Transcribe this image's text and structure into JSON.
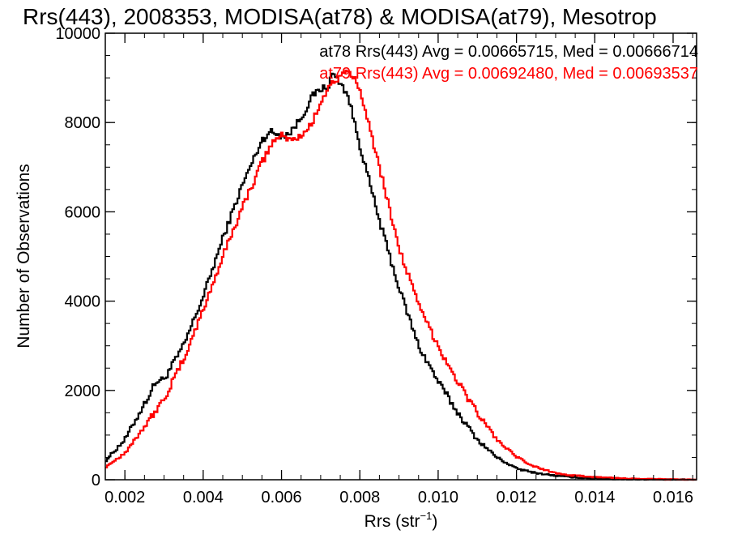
{
  "chart_data": {
    "type": "line",
    "title": "Rrs(443), 2008353, MODISA(at78) & MODISA(at79), Mesotrop",
    "xlabel": "Rrs (str",
    "xlabel_sup": "−1",
    "xlabel_close": ")",
    "ylabel": "Number of Observations",
    "xlim": [
      0.0015,
      0.0166
    ],
    "ylim": [
      0,
      10000
    ],
    "xticks": [
      0.002,
      0.004,
      0.006,
      0.008,
      0.01,
      0.012,
      0.014,
      0.016
    ],
    "xtick_labels": [
      "0.002",
      "0.004",
      "0.006",
      "0.008",
      "0.010",
      "0.012",
      "0.014",
      "0.016"
    ],
    "yticks": [
      0,
      2000,
      4000,
      6000,
      8000,
      10000
    ],
    "ytick_labels": [
      "0",
      "2000",
      "4000",
      "6000",
      "8000",
      "10000"
    ],
    "grid": false,
    "legend_position": "top-right",
    "series": [
      {
        "legend": "at78 Rrs(443) Avg = 0.00665715, Med = 0.00666714",
        "color": "#000000",
        "x": [
          0.0015,
          0.002,
          0.0025,
          0.0028,
          0.003,
          0.0035,
          0.004,
          0.0045,
          0.005,
          0.0055,
          0.0057,
          0.006,
          0.0062,
          0.0065,
          0.0068,
          0.007,
          0.0072,
          0.0073,
          0.0075,
          0.0077,
          0.008,
          0.0085,
          0.009,
          0.0095,
          0.01,
          0.0105,
          0.011,
          0.0115,
          0.012,
          0.0125,
          0.013,
          0.0135,
          0.014,
          0.0145,
          0.015,
          0.0155,
          0.016,
          0.0166
        ],
        "y": [
          420,
          900,
          1700,
          2200,
          2250,
          3000,
          4100,
          5400,
          6600,
          7600,
          7800,
          7700,
          7750,
          8100,
          8600,
          8750,
          8800,
          9100,
          8900,
          8600,
          7500,
          5800,
          4300,
          3000,
          2200,
          1500,
          900,
          500,
          250,
          150,
          90,
          50,
          30,
          15,
          10,
          5,
          2,
          0
        ]
      },
      {
        "legend": "at79 Rrs(443) Avg = 0.00692480, Med = 0.00693537",
        "color": "#ff0000",
        "x": [
          0.0015,
          0.002,
          0.0025,
          0.003,
          0.0035,
          0.004,
          0.0045,
          0.005,
          0.0055,
          0.0058,
          0.006,
          0.0063,
          0.0065,
          0.0068,
          0.007,
          0.0073,
          0.0075,
          0.0077,
          0.008,
          0.0085,
          0.009,
          0.0095,
          0.01,
          0.0105,
          0.011,
          0.0115,
          0.012,
          0.0125,
          0.013,
          0.0135,
          0.014,
          0.0145,
          0.015,
          0.0155,
          0.016,
          0.0166
        ],
        "y": [
          280,
          600,
          1200,
          1800,
          2700,
          3800,
          5000,
          6100,
          7100,
          7600,
          7700,
          7600,
          7700,
          8000,
          8500,
          8900,
          9000,
          9150,
          8800,
          7000,
          5200,
          3900,
          3000,
          2200,
          1500,
          900,
          500,
          280,
          150,
          90,
          60,
          40,
          25,
          12,
          5,
          0
        ]
      }
    ]
  }
}
